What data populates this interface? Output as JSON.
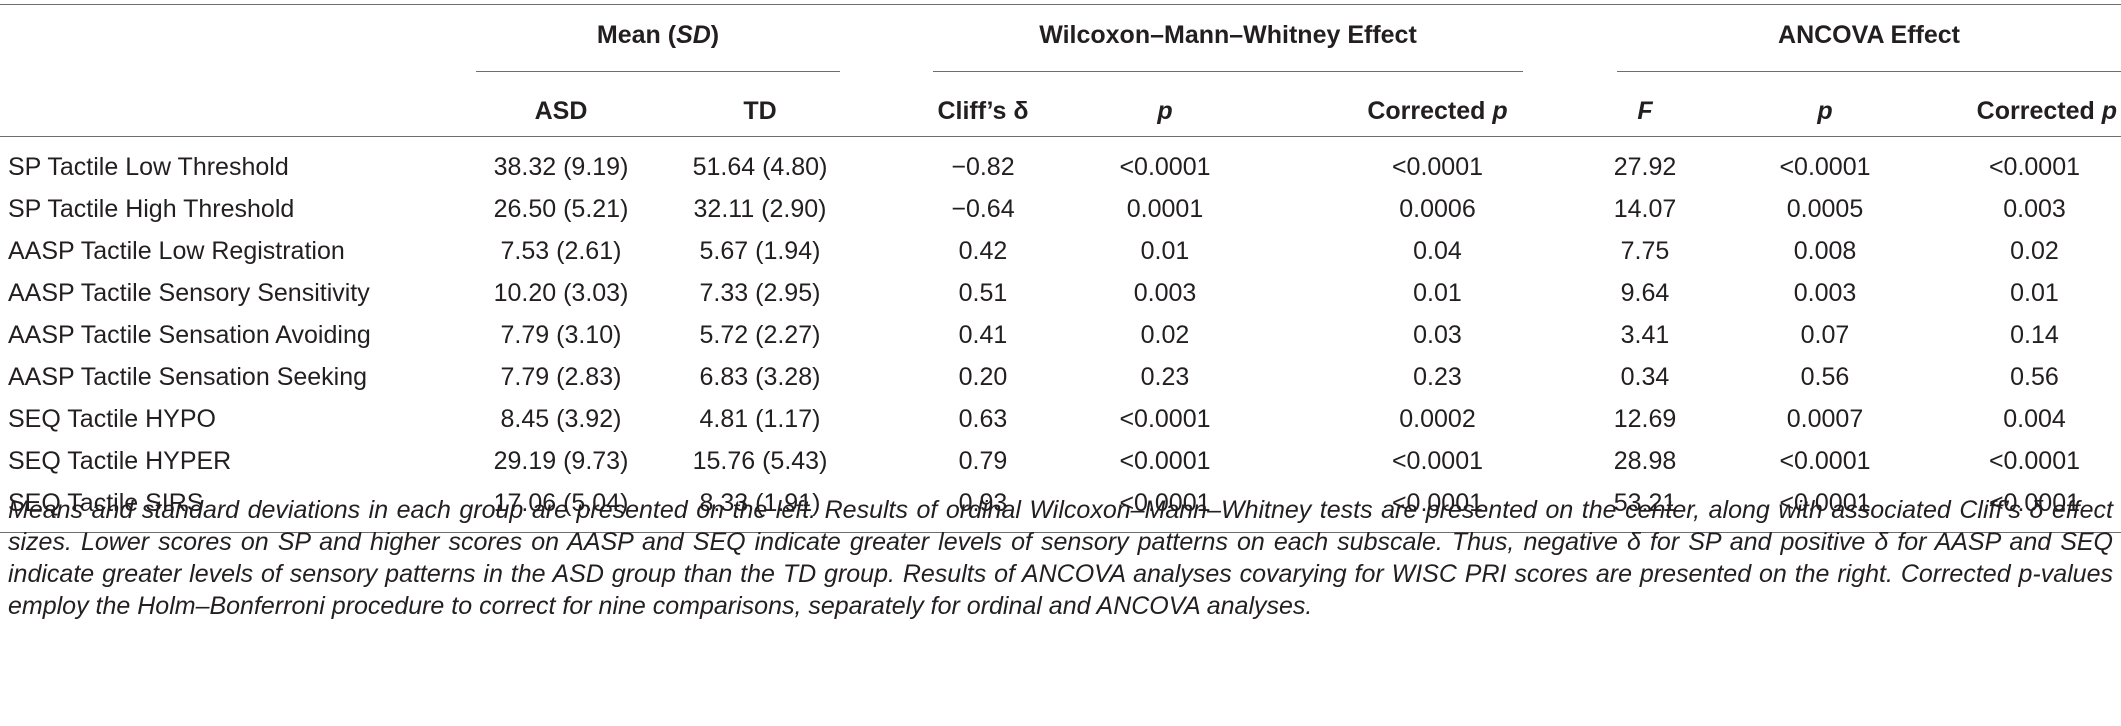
{
  "table": {
    "group_headers": {
      "mean": {
        "pre": "Mean (",
        "em": "SD",
        "post": ")"
      },
      "wilcoxon": "Wilcoxon–Mann–Whitney Effect",
      "ancova": "ANCOVA Effect"
    },
    "columns": {
      "asd": "ASD",
      "td": "TD",
      "cliffs": "Cliff’s δ",
      "p1": "p",
      "corrected1_pre": "Corrected ",
      "corrected1_em": "p",
      "f": "F",
      "p2": "p",
      "corrected2_pre": "Corrected ",
      "corrected2_em": "p"
    },
    "rows": [
      {
        "label": "SP Tactile Low Threshold",
        "asd": "38.32 (9.19)",
        "td": "51.64 (4.80)",
        "cliffs": "−0.82",
        "p1": "<0.0001",
        "cp1": "<0.0001",
        "f": "27.92",
        "p2": "<0.0001",
        "cp2": "<0.0001"
      },
      {
        "label": "SP Tactile High Threshold",
        "asd": "26.50 (5.21)",
        "td": "32.11 (2.90)",
        "cliffs": "−0.64",
        "p1": "0.0001",
        "cp1": "0.0006",
        "f": "14.07",
        "p2": "0.0005",
        "cp2": "0.003"
      },
      {
        "label": "AASP Tactile Low Registration",
        "asd": "7.53 (2.61)",
        "td": "5.67 (1.94)",
        "cliffs": "0.42",
        "p1": "0.01",
        "cp1": "0.04",
        "f": "7.75",
        "p2": "0.008",
        "cp2": "0.02"
      },
      {
        "label": "AASP Tactile Sensory Sensitivity",
        "asd": "10.20 (3.03)",
        "td": "7.33 (2.95)",
        "cliffs": "0.51",
        "p1": "0.003",
        "cp1": "0.01",
        "f": "9.64",
        "p2": "0.003",
        "cp2": "0.01"
      },
      {
        "label": "AASP Tactile Sensation Avoiding",
        "asd": "7.79 (3.10)",
        "td": "5.72 (2.27)",
        "cliffs": "0.41",
        "p1": "0.02",
        "cp1": "0.03",
        "f": "3.41",
        "p2": "0.07",
        "cp2": "0.14"
      },
      {
        "label": "AASP Tactile Sensation Seeking",
        "asd": "7.79 (2.83)",
        "td": "6.83 (3.28)",
        "cliffs": "0.20",
        "p1": "0.23",
        "cp1": "0.23",
        "f": "0.34",
        "p2": "0.56",
        "cp2": "0.56"
      },
      {
        "label": "SEQ Tactile HYPO",
        "asd": "8.45 (3.92)",
        "td": "4.81 (1.17)",
        "cliffs": "0.63",
        "p1": "<0.0001",
        "cp1": "0.0002",
        "f": "12.69",
        "p2": "0.0007",
        "cp2": "0.004"
      },
      {
        "label": "SEQ Tactile HYPER",
        "asd": "29.19 (9.73)",
        "td": "15.76 (5.43)",
        "cliffs": "0.79",
        "p1": "<0.0001",
        "cp1": "<0.0001",
        "f": "28.98",
        "p2": "<0.0001",
        "cp2": "<0.0001"
      },
      {
        "label": "SEQ Tactile SIRS",
        "asd": "17.06 (5.04)",
        "td": "8.33 (1.91)",
        "cliffs": "0.93",
        "p1": "<0.0001",
        "cp1": "<0.0001",
        "f": "53.21",
        "p2": "<0.0001",
        "cp2": "<0.0001"
      }
    ],
    "footnote": "Means and standard deviations in each group are presented on the left. Results of ordinal Wilcoxon–Mann–Whitney tests are presented on the center, along with associated Cliff’s δ effect sizes. Lower scores on SP and higher scores on AASP and SEQ indicate greater levels of sensory patterns on each subscale. Thus, negative δ for SP and positive δ for AASP and SEQ indicate greater levels of sensory patterns in the ASD group than the TD group. Results of ANCOVA analyses covarying for WISC PRI scores are presented on the right. Corrected p-values employ the Holm–Bonferroni procedure to correct for nine comparisons, separately for ordinal and ANCOVA analyses."
  }
}
